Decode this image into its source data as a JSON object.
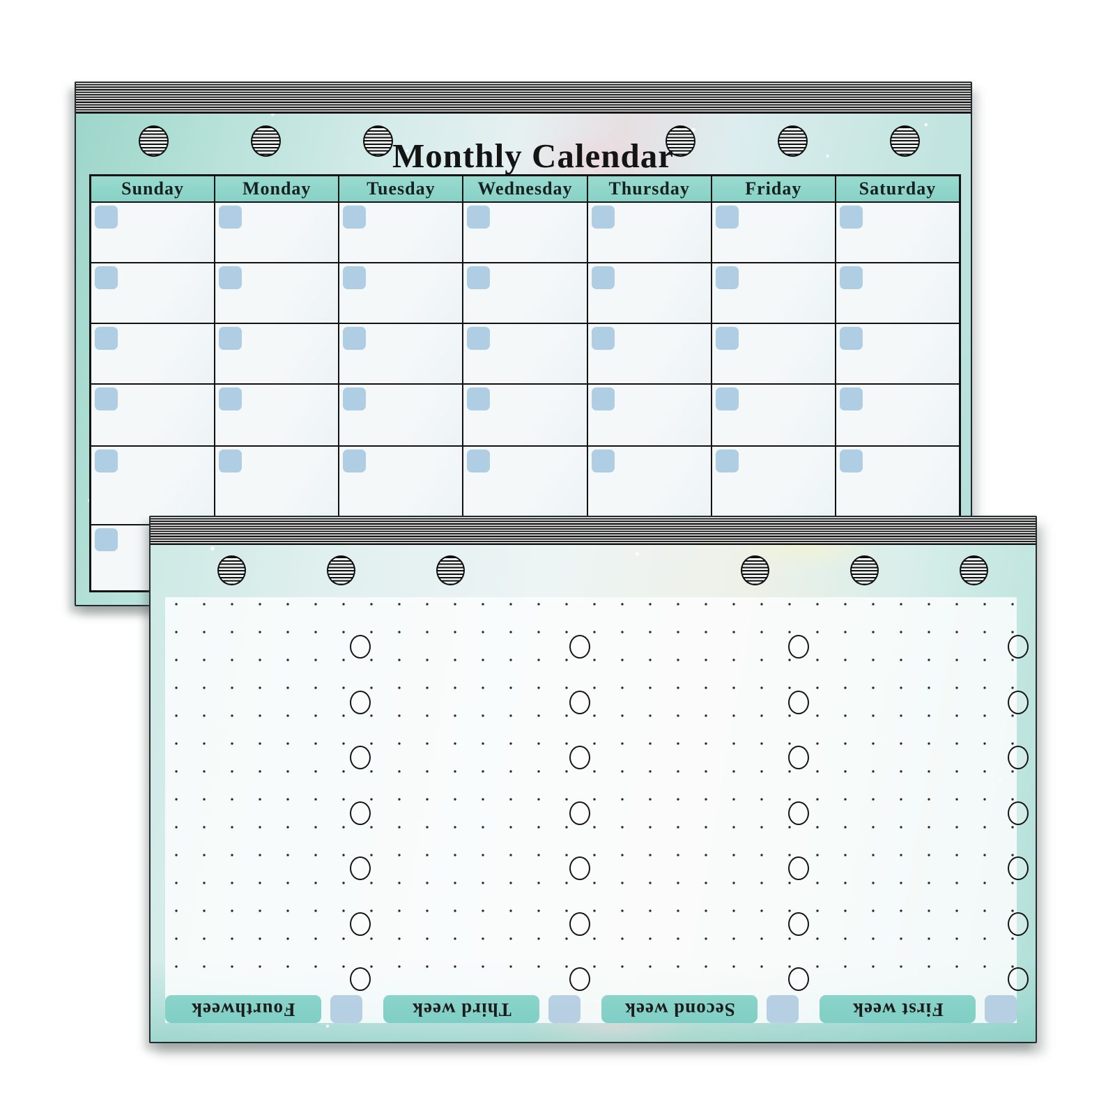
{
  "monthly_pad": {
    "title": "Monthly Calendar",
    "day_headers": [
      "Sunday",
      "Monday",
      "Tuesday",
      "Wednesday",
      "Thursday",
      "Friday",
      "Saturday"
    ],
    "rows": 6,
    "columns": 7,
    "date_cells": 42,
    "binder_holes": 6,
    "colors": {
      "header_fill": "#8fd5c9",
      "date_box": "#9dc3dd",
      "grid_border": "#121212",
      "watercolor_teal": "#b4dfda"
    }
  },
  "weekly_pad": {
    "week_labels": [
      "Fourthweek",
      "Third week",
      "Second week",
      "First week"
    ],
    "check_circle_columns": 4,
    "check_circles_per_column": 7,
    "total_check_circles": 28,
    "binder_holes": 6,
    "colors": {
      "label_bar": "#85d1c8",
      "label_box": "#acc8df",
      "dot": "#2a2a2a"
    }
  }
}
